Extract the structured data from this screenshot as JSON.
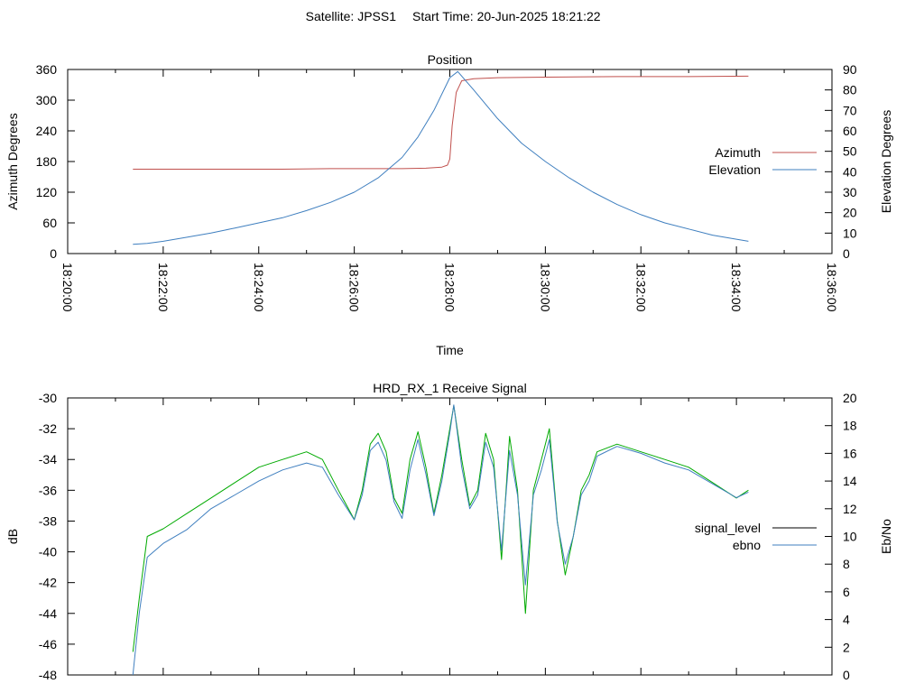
{
  "header": {
    "satellite_text": "Satellite: JPSS1",
    "start_time_text": "Start Time: 20-Jun-2025 18:21:22"
  },
  "chart_data": [
    {
      "type": "line",
      "title": "Position",
      "xlabel": "Time",
      "ylabel": "Azimuth Degrees",
      "y2label": "Elevation Degrees",
      "xlim": [
        "18:20:00",
        "18:36:00"
      ],
      "ylim": [
        0,
        360
      ],
      "y2lim": [
        0,
        90
      ],
      "x_ticks": [
        "18:20:00",
        "18:22:00",
        "18:24:00",
        "18:26:00",
        "18:28:00",
        "18:30:00",
        "18:32:00",
        "18:34:00",
        "18:36:00"
      ],
      "y_ticks": [
        0,
        60,
        120,
        180,
        240,
        300,
        360
      ],
      "y2_ticks": [
        0,
        10,
        20,
        30,
        40,
        50,
        60,
        70,
        80,
        90
      ],
      "legend_position": "right",
      "series": [
        {
          "name": "Azimuth",
          "axis": "y",
          "color": "#c0504d",
          "x": [
            "18:21:22",
            "18:23:00",
            "18:24:30",
            "18:25:30",
            "18:26:30",
            "18:27:00",
            "18:27:30",
            "18:27:50",
            "18:27:57",
            "18:28:00",
            "18:28:03",
            "18:28:08",
            "18:28:15",
            "18:28:30",
            "18:29:00",
            "18:30:00",
            "18:31:30",
            "18:33:00",
            "18:34:15"
          ],
          "values": [
            165,
            165,
            165,
            166,
            166,
            166,
            167,
            169,
            173,
            185,
            250,
            315,
            338,
            342,
            344,
            345,
            346,
            346,
            347
          ]
        },
        {
          "name": "Elevation",
          "axis": "y2",
          "color": "#3f7fbf",
          "x": [
            "18:21:22",
            "18:21:40",
            "18:22:00",
            "18:22:30",
            "18:23:00",
            "18:23:30",
            "18:24:00",
            "18:24:30",
            "18:25:00",
            "18:25:30",
            "18:26:00",
            "18:26:30",
            "18:27:00",
            "18:27:20",
            "18:27:40",
            "18:28:00",
            "18:28:10",
            "18:28:30",
            "18:29:00",
            "18:29:30",
            "18:30:00",
            "18:30:30",
            "18:31:00",
            "18:31:30",
            "18:32:00",
            "18:32:30",
            "18:33:00",
            "18:33:30",
            "18:34:00",
            "18:34:15"
          ],
          "values": [
            4.5,
            5,
            6,
            8,
            10,
            12.5,
            15,
            17.5,
            21,
            25,
            30,
            37,
            47,
            57,
            70,
            86,
            89,
            80,
            66,
            54,
            45,
            37,
            30,
            24,
            19,
            15,
            12,
            9,
            7,
            6
          ]
        }
      ]
    },
    {
      "type": "line",
      "title": "HRD_RX_1 Receive Signal",
      "xlabel": "",
      "ylabel": "dB",
      "y2label": "Eb/No",
      "xlim": [
        "18:20:00",
        "18:36:00"
      ],
      "ylim": [
        -48,
        -30
      ],
      "y2lim": [
        0,
        20
      ],
      "y_ticks": [
        -48,
        -46,
        -44,
        -42,
        -40,
        -38,
        -36,
        -34,
        -32,
        -30
      ],
      "y2_ticks": [
        0,
        2,
        4,
        6,
        8,
        10,
        12,
        14,
        16,
        18,
        20
      ],
      "legend_position": "right",
      "series": [
        {
          "name": "signal_level",
          "axis": "y",
          "color": "#00aa00",
          "x": [
            "18:21:22",
            "18:21:30",
            "18:21:40",
            "18:22:00",
            "18:22:30",
            "18:23:00",
            "18:23:30",
            "18:24:00",
            "18:24:30",
            "18:25:00",
            "18:25:20",
            "18:25:40",
            "18:26:00",
            "18:26:10",
            "18:26:20",
            "18:26:30",
            "18:26:40",
            "18:26:50",
            "18:27:00",
            "18:27:10",
            "18:27:20",
            "18:27:30",
            "18:27:40",
            "18:27:50",
            "18:28:00",
            "18:28:05",
            "18:28:15",
            "18:28:25",
            "18:28:35",
            "18:28:45",
            "18:28:55",
            "18:29:05",
            "18:29:15",
            "18:29:25",
            "18:29:35",
            "18:29:45",
            "18:29:55",
            "18:30:05",
            "18:30:15",
            "18:30:25",
            "18:30:35",
            "18:30:45",
            "18:30:55",
            "18:31:05",
            "18:31:30",
            "18:32:00",
            "18:32:30",
            "18:33:00",
            "18:33:30",
            "18:34:00",
            "18:34:15"
          ],
          "values": [
            -46.5,
            -43,
            -39,
            -38.5,
            -37.5,
            -36.5,
            -35.5,
            -34.5,
            -34,
            -33.5,
            -34,
            -36,
            -37.9,
            -36,
            -33,
            -32.3,
            -33.5,
            -36.5,
            -37.5,
            -34,
            -32.2,
            -34.5,
            -37.5,
            -35,
            -32,
            -30.5,
            -34,
            -37,
            -36,
            -32.3,
            -34,
            -40.5,
            -32.5,
            -36,
            -44,
            -36,
            -34,
            -32,
            -38,
            -41.5,
            -39,
            -36,
            -35,
            -33.5,
            -33,
            -33.5,
            -34,
            -34.5,
            -35.5,
            -36.5,
            -36
          ]
        },
        {
          "name": "ebno",
          "axis": "y2",
          "color": "#3f7fbf",
          "x": [
            "18:21:22",
            "18:21:30",
            "18:21:40",
            "18:22:00",
            "18:22:30",
            "18:23:00",
            "18:23:30",
            "18:24:00",
            "18:24:30",
            "18:25:00",
            "18:25:20",
            "18:25:40",
            "18:26:00",
            "18:26:10",
            "18:26:20",
            "18:26:30",
            "18:26:40",
            "18:26:50",
            "18:27:00",
            "18:27:10",
            "18:27:20",
            "18:27:30",
            "18:27:40",
            "18:27:50",
            "18:28:00",
            "18:28:05",
            "18:28:15",
            "18:28:25",
            "18:28:35",
            "18:28:45",
            "18:28:55",
            "18:29:05",
            "18:29:15",
            "18:29:25",
            "18:29:35",
            "18:29:45",
            "18:29:55",
            "18:30:05",
            "18:30:15",
            "18:30:25",
            "18:30:35",
            "18:30:45",
            "18:30:55",
            "18:31:05",
            "18:31:30",
            "18:32:00",
            "18:32:30",
            "18:33:00",
            "18:33:30",
            "18:34:00",
            "18:34:15"
          ],
          "values": [
            0,
            4.5,
            8.5,
            9.5,
            10.5,
            12,
            13,
            14,
            14.8,
            15.3,
            15,
            13,
            11.2,
            13,
            16.2,
            16.8,
            15.5,
            12.5,
            11.3,
            14.8,
            17,
            14.5,
            11.5,
            14,
            17.5,
            19.5,
            15,
            12,
            13,
            16.8,
            15,
            9,
            16.2,
            13,
            6.5,
            13,
            14.8,
            17,
            11,
            8,
            10,
            13,
            14,
            15.8,
            16.5,
            16,
            15.3,
            14.8,
            13.8,
            12.8,
            13.2
          ]
        }
      ]
    }
  ]
}
